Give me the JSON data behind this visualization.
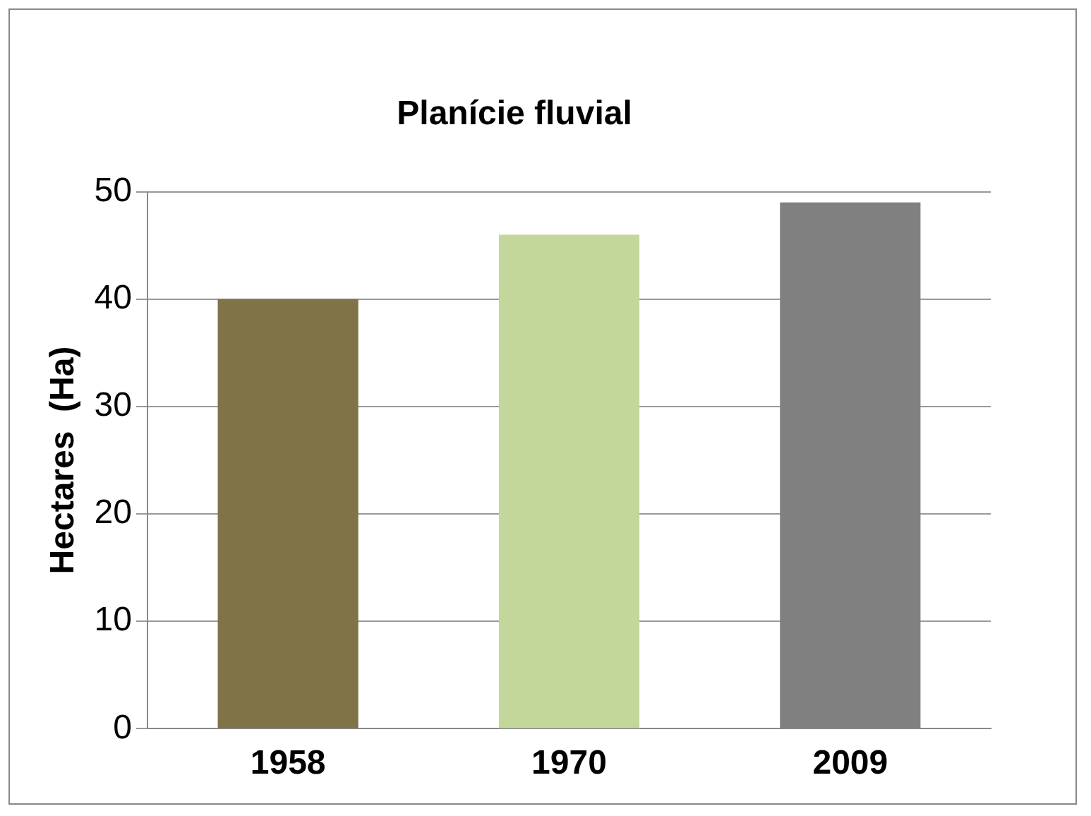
{
  "chart_data": {
    "type": "bar",
    "title": "Planície fluvial",
    "ylabel": "Hectares  (Ha)",
    "categories": [
      "1958",
      "1970",
      "2009"
    ],
    "values": [
      40,
      46,
      49
    ],
    "colors": [
      "#7f7347",
      "#c4d79b",
      "#808080"
    ],
    "ylim": [
      0,
      50
    ],
    "yticks": [
      0,
      10,
      20,
      30,
      40,
      50
    ],
    "grid": "y",
    "legend": false
  }
}
